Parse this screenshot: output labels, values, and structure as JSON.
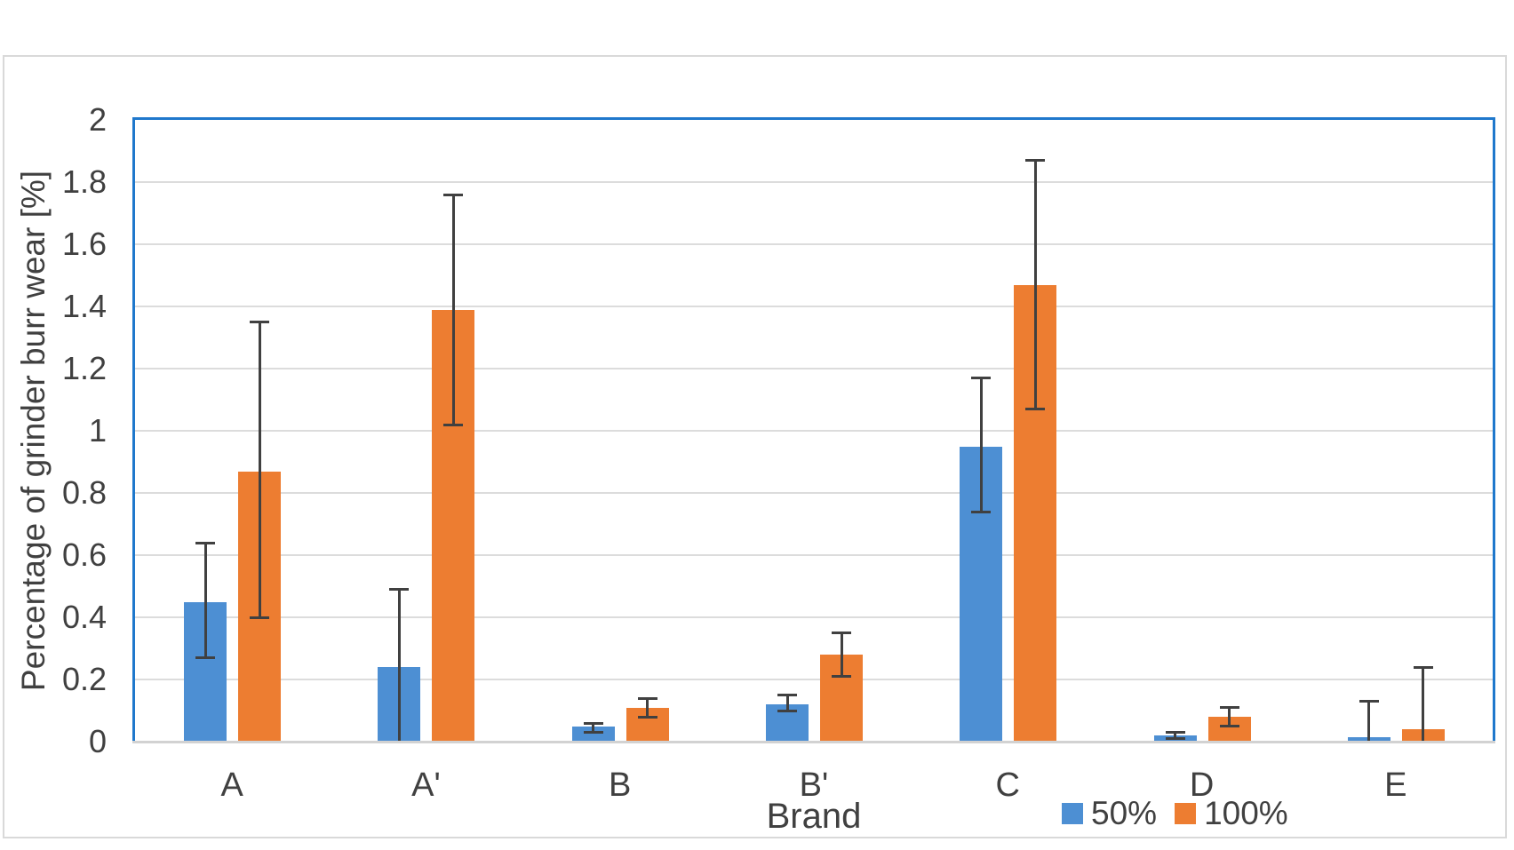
{
  "chart_data": {
    "type": "bar",
    "title": "",
    "xlabel": "Brand",
    "ylabel": "Percentage of grinder burr wear [%]",
    "categories": [
      "A",
      "A'",
      "B",
      "B'",
      "C",
      "D",
      "E"
    ],
    "series": [
      {
        "name": "50%",
        "color": "#4D8FD3",
        "values": [
          0.45,
          0.24,
          0.05,
          0.12,
          0.95,
          0.02,
          0.015
        ],
        "error_low": [
          0.27,
          0.0,
          0.03,
          0.1,
          0.74,
          0.01,
          0.0
        ],
        "error_high": [
          0.64,
          0.49,
          0.06,
          0.15,
          1.17,
          0.03,
          0.13
        ]
      },
      {
        "name": "100%",
        "color": "#ED7D31",
        "values": [
          0.87,
          1.39,
          0.11,
          0.28,
          1.47,
          0.08,
          0.04
        ],
        "error_low": [
          0.4,
          1.02,
          0.08,
          0.21,
          1.07,
          0.05,
          0.0
        ],
        "error_high": [
          1.35,
          1.76,
          0.14,
          0.35,
          1.87,
          0.11,
          0.24
        ]
      }
    ],
    "ylim": [
      0,
      2
    ],
    "ytick_step": 0.2,
    "ytick_labels": [
      "0",
      "0.2",
      "0.4",
      "0.6",
      "0.8",
      "1",
      "1.2",
      "1.4",
      "1.6",
      "1.8",
      "2"
    ],
    "grid": true,
    "legend_position": "bottom-right",
    "colors": {
      "plot_border": "#1F78CC",
      "gridline": "#DCDCDC",
      "axis_line": "#D2D2D2",
      "error_bar": "#404040",
      "text": "#404040",
      "figure_border": "#D9D9D9"
    }
  }
}
